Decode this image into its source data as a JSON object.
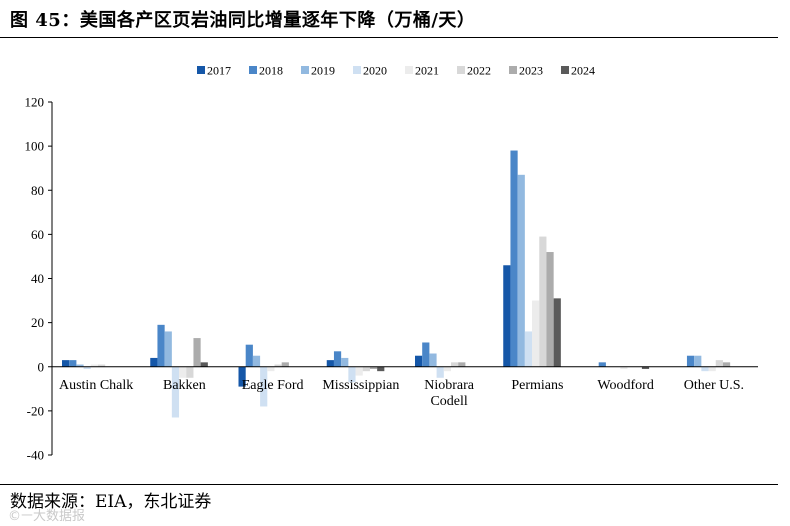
{
  "header": {
    "title": "图 45：美国各产区页岩油同比增量逐年下降（万桶/天）"
  },
  "footer": {
    "source": "数据来源：EIA，东北证券",
    "watermark": "©ㅡ大数据报"
  },
  "chart_data": {
    "type": "bar",
    "categories": [
      "Austin Chalk",
      "Bakken",
      "Eagle Ford",
      "Mississippian",
      "Niobrara\nCodell",
      "Permians",
      "Woodford",
      "Other U.S."
    ],
    "ylim": [
      -40,
      120
    ],
    "yticks": [
      -40,
      -20,
      0,
      20,
      40,
      60,
      80,
      100,
      120
    ],
    "grid": false,
    "legend_position": "top-center",
    "series": [
      {
        "name": "2017",
        "color": "#1557a8",
        "values": [
          3,
          4,
          -9,
          3,
          5,
          46,
          0,
          0
        ]
      },
      {
        "name": "2018",
        "color": "#4a86c8",
        "values": [
          3,
          19,
          10,
          7,
          11,
          98,
          2,
          5
        ]
      },
      {
        "name": "2019",
        "color": "#92b9e0",
        "values": [
          1,
          16,
          5,
          4,
          6,
          87,
          0,
          5
        ]
      },
      {
        "name": "2020",
        "color": "#cfe0f2",
        "values": [
          -1,
          -23,
          -18,
          -7,
          -5,
          16,
          0,
          -2
        ]
      },
      {
        "name": "2021",
        "color": "#ececec",
        "values": [
          1,
          -5,
          -2,
          -4,
          -2,
          30,
          -1,
          -2
        ]
      },
      {
        "name": "2022",
        "color": "#d8d8d8",
        "values": [
          1,
          -5,
          1,
          -2,
          2,
          59,
          0,
          3
        ]
      },
      {
        "name": "2023",
        "color": "#acacac",
        "values": [
          0,
          13,
          2,
          -1,
          2,
          52,
          0,
          2
        ]
      },
      {
        "name": "2024",
        "color": "#5a5a5a",
        "values": [
          0,
          2,
          0,
          -2,
          0,
          31,
          -1,
          0
        ]
      }
    ]
  }
}
